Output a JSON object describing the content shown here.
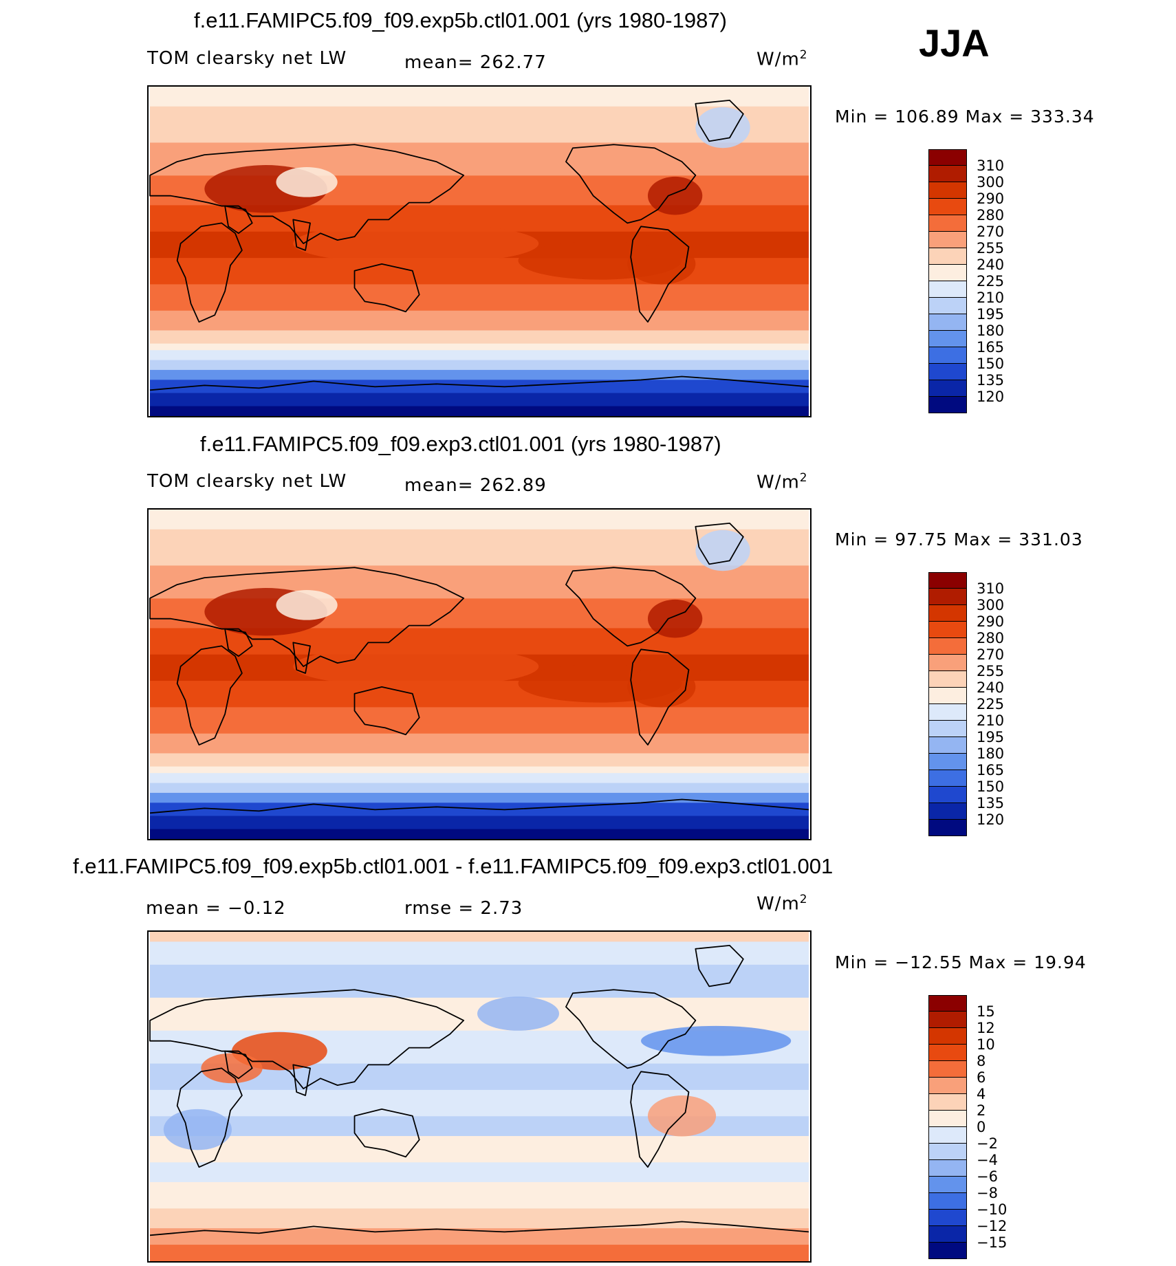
{
  "season": "JJA",
  "panels": [
    {
      "title": "f.e11.FAMIPC5.f09_f09.exp5b.ctl01.001 (yrs 1980-1987)",
      "variable": "TOM clearsky net LW",
      "stat": "mean=  262.77",
      "units": "W/m",
      "units_exp": "2",
      "minmax": "Min  =  106.89  Max  =  333.34",
      "levels": [
        "310",
        "300",
        "290",
        "280",
        "270",
        "255",
        "240",
        "225",
        "210",
        "195",
        "180",
        "165",
        "150",
        "135",
        "120"
      ],
      "colors": [
        "#8b0000",
        "#b01c00",
        "#d43600",
        "#e84a10",
        "#f46d3a",
        "#f9a07a",
        "#fcd3b8",
        "#fdeee0",
        "#dde9fa",
        "#bcd2f7",
        "#94b5f2",
        "#6393ec",
        "#3d6fe3",
        "#1f48cf",
        "#0a26a8",
        "#000a80"
      ],
      "ramp": "full"
    },
    {
      "title": "f.e11.FAMIPC5.f09_f09.exp3.ctl01.001 (yrs 1980-1987)",
      "variable": "TOM clearsky net LW",
      "stat": "mean=  262.89",
      "units": "W/m",
      "units_exp": "2",
      "minmax": "Min  =    97.75  Max  =  331.03",
      "levels": [
        "310",
        "300",
        "290",
        "280",
        "270",
        "255",
        "240",
        "225",
        "210",
        "195",
        "180",
        "165",
        "150",
        "135",
        "120"
      ],
      "colors": [
        "#8b0000",
        "#b01c00",
        "#d43600",
        "#e84a10",
        "#f46d3a",
        "#f9a07a",
        "#fcd3b8",
        "#fdeee0",
        "#dde9fa",
        "#bcd2f7",
        "#94b5f2",
        "#6393ec",
        "#3d6fe3",
        "#1f48cf",
        "#0a26a8",
        "#000a80"
      ],
      "ramp": "full"
    },
    {
      "title": "f.e11.FAMIPC5.f09_f09.exp5b.ctl01.001 - f.e11.FAMIPC5.f09_f09.exp3.ctl01.001",
      "variable": "mean  =    −0.12",
      "stat": "rmse  =     2.73",
      "units": "W/m",
      "units_exp": "2",
      "minmax": "Min  =  −12.55  Max  =    19.94",
      "levels": [
        "15",
        "12",
        "10",
        "8",
        "6",
        "4",
        "2",
        "0",
        "−2",
        "−4",
        "−6",
        "−8",
        "−10",
        "−12",
        "−15"
      ],
      "colors": [
        "#8b0000",
        "#b01c00",
        "#d43600",
        "#e84a10",
        "#f46d3a",
        "#f9a07a",
        "#fcd3b8",
        "#fdeee0",
        "#dde9fa",
        "#bcd2f7",
        "#94b5f2",
        "#6393ec",
        "#3d6fe3",
        "#1f48cf",
        "#0a26a8",
        "#000a80"
      ],
      "ramp": "diff"
    }
  ]
}
